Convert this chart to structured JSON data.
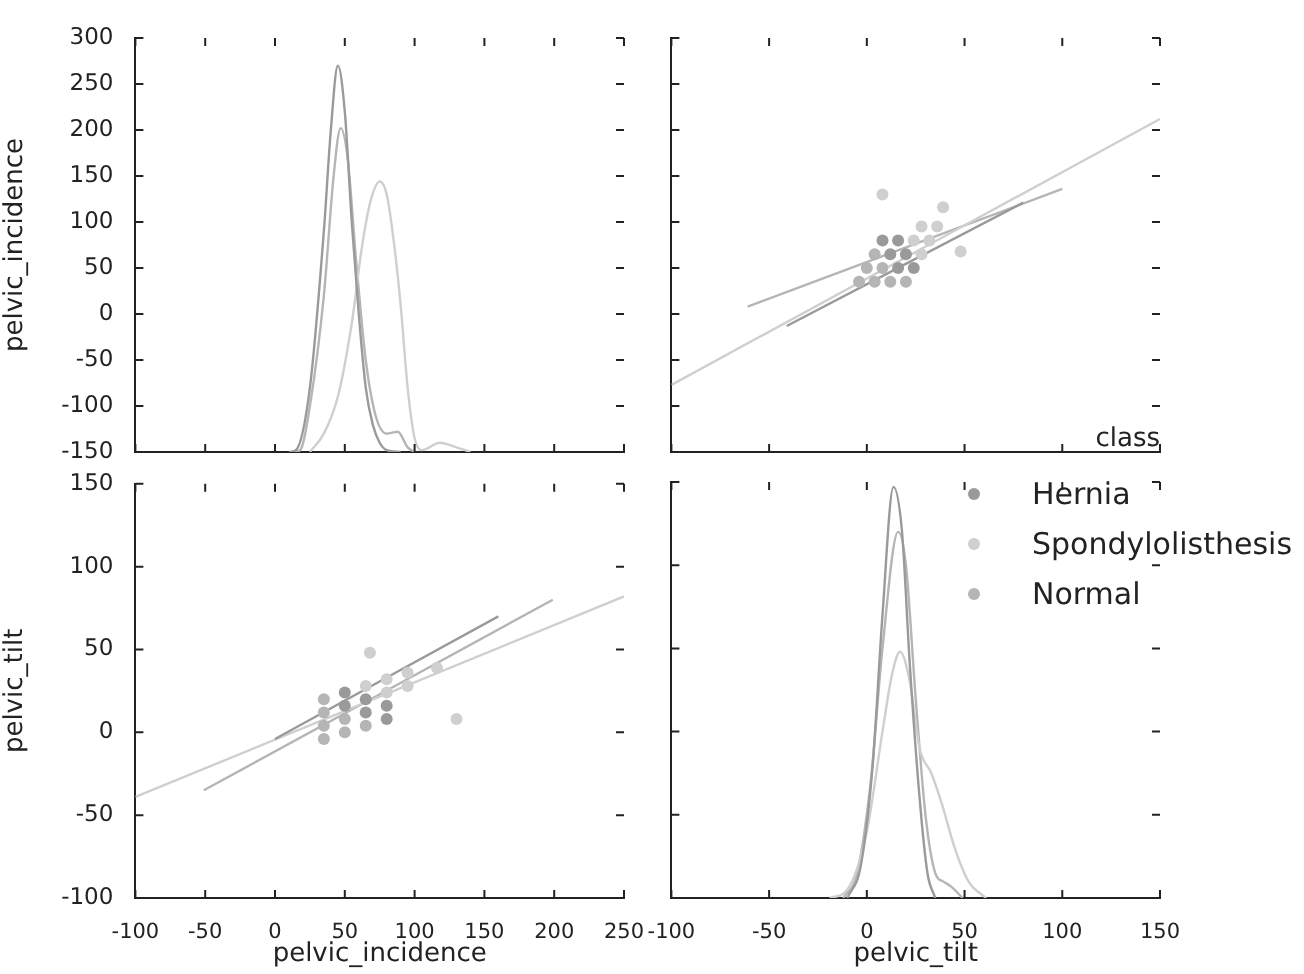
{
  "chart_data": [
    {
      "type": "line",
      "ylabel": "pelvic_incidence",
      "xlim": [
        -100,
        250
      ],
      "xticks": [
        -100,
        -50,
        0,
        50,
        100,
        150,
        200,
        250
      ],
      "ylim": [
        -150,
        300
      ],
      "yticks": [
        -150,
        -100,
        -50,
        0,
        50,
        100,
        150,
        200,
        250,
        300
      ],
      "tick_labels": "y",
      "series": [
        {
          "color": "#9a9a9a",
          "x": [
            10,
            15,
            25,
            35,
            40,
            45,
            50,
            55,
            60,
            65,
            70,
            75,
            80,
            90
          ],
          "values": [
            -150,
            -148,
            -80,
            90,
            200,
            270,
            220,
            100,
            0,
            -80,
            -120,
            -140,
            -148,
            -150
          ]
        },
        {
          "color": "#cfcfcf",
          "x": [
            25,
            35,
            45,
            55,
            62,
            68,
            75,
            80,
            85,
            90,
            95,
            100,
            105,
            118,
            130,
            140
          ],
          "values": [
            -150,
            -130,
            -90,
            -10,
            70,
            120,
            144,
            130,
            80,
            10,
            -80,
            -135,
            -148,
            -140,
            -145,
            -150
          ]
        },
        {
          "color": "#b5b5b5",
          "x": [
            12,
            18,
            25,
            35,
            42,
            47,
            52,
            58,
            65,
            72,
            80,
            88,
            95,
            100
          ],
          "values": [
            -150,
            -148,
            -100,
            20,
            150,
            202,
            170,
            60,
            -50,
            -110,
            -130,
            -128,
            -145,
            -150
          ]
        }
      ]
    },
    {
      "type": "scatter",
      "xlim": [
        -100,
        150
      ],
      "xticks": [
        -100,
        -50,
        0,
        50,
        100,
        150
      ],
      "ylim": [
        -150,
        300
      ],
      "yticks": [
        -150,
        -100,
        -50,
        0,
        50,
        100,
        150,
        200,
        250,
        300
      ],
      "tick_labels": false,
      "series": [
        {
          "color": "#9a9a9a",
          "marker": "circle",
          "x": [
            16,
            24,
            12,
            20,
            8,
            16
          ],
          "values": [
            50,
            50,
            65,
            65,
            80,
            80
          ]
        },
        {
          "color": "#cfcfcf",
          "marker": "circle",
          "x": [
            28,
            24,
            32,
            28,
            36,
            8,
            39,
            48
          ],
          "values": [
            65,
            80,
            80,
            95,
            95,
            130,
            116,
            68
          ]
        },
        {
          "color": "#b5b5b5",
          "marker": "circle",
          "x": [
            -4,
            4,
            12,
            20,
            0,
            8,
            4
          ],
          "values": [
            35,
            35,
            35,
            35,
            50,
            50,
            65
          ]
        },
        {
          "type": "line",
          "color": "#9a9a9a",
          "x": [
            -41,
            80
          ],
          "values": [
            -13,
            121
          ]
        },
        {
          "type": "line",
          "color": "#cfcfcf",
          "x": [
            -100,
            150
          ],
          "values": [
            -77,
            212
          ]
        },
        {
          "type": "line",
          "color": "#b5b5b5",
          "x": [
            -61,
            100
          ],
          "values": [
            8,
            136
          ]
        }
      ]
    },
    {
      "type": "scatter",
      "xlabel": "pelvic_incidence",
      "ylabel": "pelvic_tilt",
      "xlim": [
        -100,
        250
      ],
      "xticks": [
        -100,
        -50,
        0,
        50,
        100,
        150,
        200,
        250
      ],
      "ylim": [
        -100,
        150
      ],
      "yticks": [
        -100,
        -50,
        0,
        50,
        100,
        150
      ],
      "series": [
        {
          "color": "#9a9a9a",
          "marker": "circle",
          "x": [
            50,
            50,
            65,
            65,
            80,
            80
          ],
          "values": [
            16,
            24,
            12,
            20,
            8,
            16
          ]
        },
        {
          "color": "#cfcfcf",
          "marker": "circle",
          "x": [
            65,
            80,
            80,
            95,
            95,
            130,
            116,
            68
          ],
          "values": [
            28,
            24,
            32,
            28,
            36,
            8,
            39,
            48
          ]
        },
        {
          "color": "#b5b5b5",
          "marker": "circle",
          "x": [
            35,
            35,
            35,
            35,
            50,
            50,
            65
          ],
          "values": [
            -4,
            4,
            12,
            20,
            0,
            8,
            4
          ]
        },
        {
          "type": "line",
          "color": "#9a9a9a",
          "x": [
            0,
            160
          ],
          "values": [
            -4,
            70
          ]
        },
        {
          "type": "line",
          "color": "#cfcfcf",
          "x": [
            -100,
            250
          ],
          "values": [
            -39,
            82
          ]
        },
        {
          "type": "line",
          "color": "#b5b5b5",
          "x": [
            -51,
            199
          ],
          "values": [
            -35,
            80
          ]
        }
      ]
    },
    {
      "type": "line",
      "xlabel": "pelvic_tilt",
      "xlim": [
        -100,
        150
      ],
      "xticks": [
        -100,
        -50,
        0,
        50,
        100,
        150
      ],
      "ylim": [
        -100,
        150
      ],
      "yticks": [
        -100,
        -50,
        0,
        50,
        100,
        150
      ],
      "tick_labels": "x",
      "legend": "top right",
      "legend_title": "class",
      "series": [
        {
          "name": "Hernia",
          "color": "#9a9a9a",
          "x": [
            -10,
            -3,
            3,
            8,
            13.6,
            18,
            22,
            27,
            31,
            35
          ],
          "values": [
            -100,
            -80,
            -20,
            70,
            147,
            120,
            40,
            -40,
            -85,
            -100
          ]
        },
        {
          "name": "Spondylolisthesis",
          "color": "#cfcfcf",
          "x": [
            -19,
            -10,
            0,
            8,
            13,
            17,
            22,
            27,
            33,
            38,
            45,
            52,
            61
          ],
          "values": [
            -100,
            -95,
            -60,
            0,
            35,
            48,
            30,
            -10,
            -25,
            -42,
            -70,
            -90,
            -100
          ]
        },
        {
          "name": "Normal",
          "color": "#b5b5b5",
          "x": [
            -12,
            -5,
            2,
            8,
            16,
            20,
            25,
            30,
            35,
            39,
            43,
            49
          ],
          "values": [
            -100,
            -85,
            -30,
            50,
            120,
            100,
            20,
            -50,
            -85,
            -90,
            -93,
            -100
          ]
        }
      ]
    }
  ]
}
